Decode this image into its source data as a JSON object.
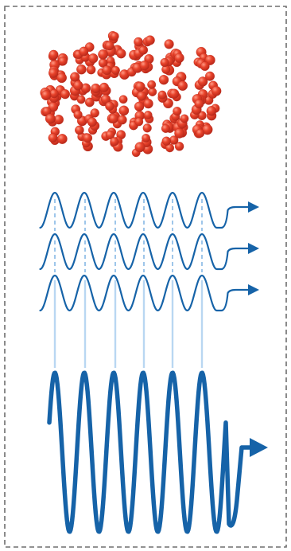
{
  "colors": {
    "background": "#ffffff",
    "frame_dash": "#6e6e6e",
    "particle": "#e8432b",
    "particle_highlight": "#ff9a85",
    "particle_shadow": "#b8281a",
    "wave": "#1663a8",
    "dashed_guide": "#9ec6ea",
    "vertical_guide": "#b9d7f2"
  },
  "diagram": {
    "particle_cluster": {
      "columns": 6,
      "style": "red-spheres"
    },
    "small_waves": {
      "count": 3,
      "periods": 6,
      "arrow": "right-arrow"
    },
    "large_wave": {
      "periods": 6,
      "arrow": "right-arrow"
    },
    "guides": {
      "vertical_lines": 6,
      "style": "light-blue"
    }
  }
}
